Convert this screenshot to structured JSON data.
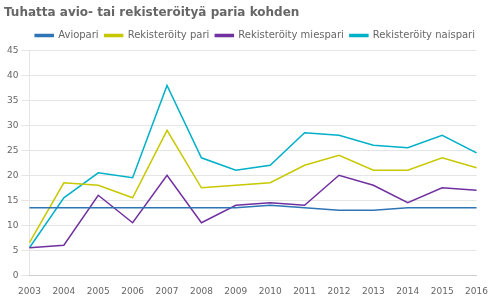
{
  "chart_data": {
    "type": "line",
    "title": "Tuhatta avio- tai rekisteröityä paria kohden",
    "categories": [
      "2003",
      "2004",
      "2005",
      "2006",
      "2007",
      "2008",
      "2009",
      "2010",
      "2011",
      "2012",
      "2013",
      "2014",
      "2015",
      "2016"
    ],
    "series": [
      {
        "name": "Aviopari",
        "color": "#2e75b6",
        "values": [
          13.5,
          13.5,
          13.5,
          13.5,
          13.5,
          13.5,
          13.5,
          14.0,
          13.5,
          13.0,
          13.0,
          13.5,
          13.5,
          13.5
        ]
      },
      {
        "name": "Rekisteröity pari",
        "color": "#c8c800",
        "values": [
          6.5,
          18.5,
          18.0,
          15.5,
          29.0,
          17.5,
          18.0,
          18.5,
          22.0,
          24.0,
          21.0,
          21.0,
          23.5,
          21.5
        ]
      },
      {
        "name": "Rekisteröity miespari",
        "color": "#7030a0",
        "values": [
          5.5,
          6.0,
          16.0,
          10.5,
          20.0,
          10.5,
          14.0,
          14.5,
          14.0,
          20.0,
          18.0,
          14.5,
          17.5,
          17.0
        ]
      },
      {
        "name": "Rekisteröity naispari",
        "color": "#00b0c8",
        "values": [
          5.5,
          15.5,
          20.5,
          19.5,
          38.0,
          23.5,
          21.0,
          22.0,
          28.5,
          28.0,
          26.0,
          25.5,
          28.0,
          24.5
        ]
      }
    ],
    "ylim": [
      0,
      45
    ],
    "yticks": [
      0,
      5,
      10,
      15,
      20,
      25,
      30,
      35,
      40,
      45
    ],
    "grid": true,
    "legend": "upper right"
  }
}
